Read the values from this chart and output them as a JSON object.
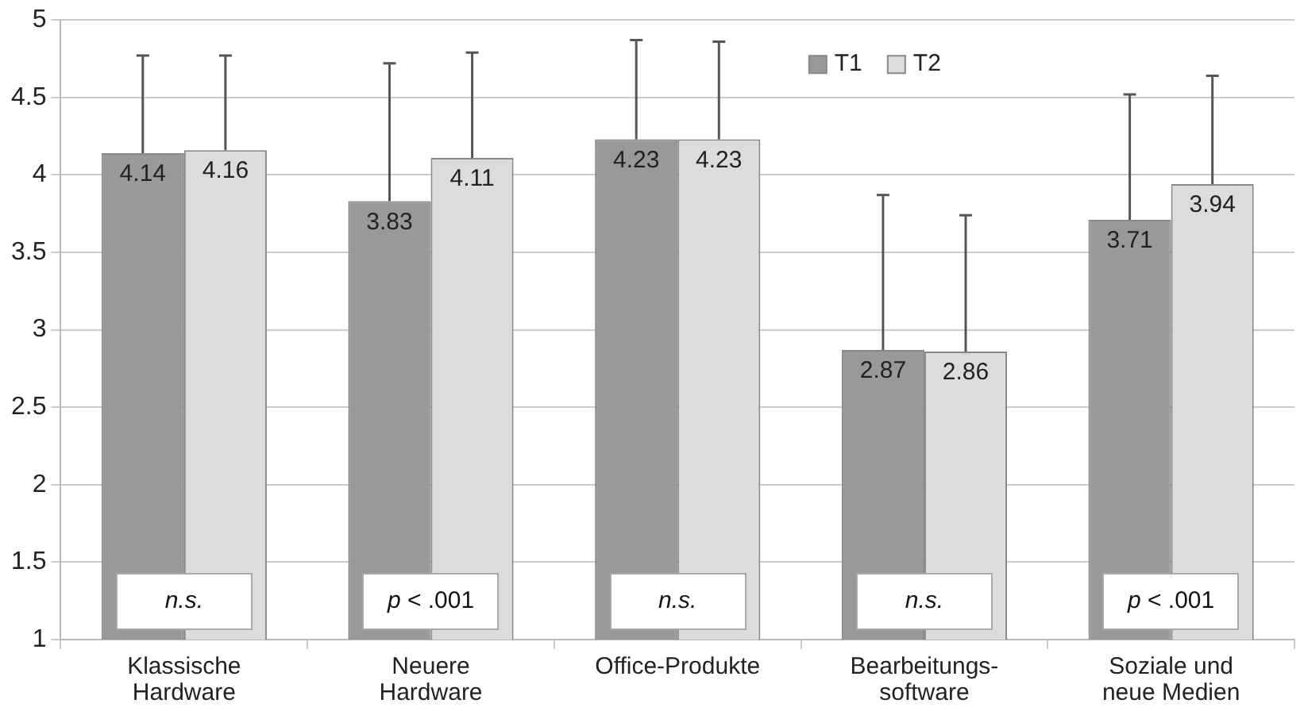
{
  "chart_data": {
    "type": "bar",
    "categories": [
      "Klassische\nHardware",
      "Neuere\nHardware",
      "Office-Produkte",
      "Bearbeitungs-\nsoftware",
      "Soziale und\nneue Medien"
    ],
    "series": [
      {
        "name": "T1",
        "color": "#999999",
        "values": [
          4.14,
          3.83,
          4.23,
          2.87,
          3.71
        ],
        "errors": [
          [
            4.14,
            4.77
          ],
          [
            3.83,
            4.72
          ],
          [
            4.23,
            4.87
          ],
          [
            2.87,
            3.87
          ],
          [
            3.71,
            4.52
          ]
        ]
      },
      {
        "name": "T2",
        "color": "#dcdcdc",
        "values": [
          4.16,
          4.11,
          4.23,
          2.86,
          3.94
        ],
        "errors": [
          [
            4.16,
            4.77
          ],
          [
            4.11,
            4.79
          ],
          [
            4.23,
            4.86
          ],
          [
            2.86,
            3.74
          ],
          [
            3.94,
            4.64
          ]
        ]
      }
    ],
    "ylim": [
      1,
      5
    ],
    "yticks": [
      1,
      1.5,
      2,
      2.5,
      3,
      3.5,
      4,
      4.5,
      5
    ],
    "grid": "y",
    "legend": "top right",
    "data_labels": true,
    "annotations": [
      {
        "text": "n.s.",
        "x": "Klassische\nHardware",
        "y": 1.25
      },
      {
        "text": "p < .001",
        "x": "Neuere\nHardware",
        "y": 1.25
      },
      {
        "text": "n.s.",
        "x": "Office-Produkte",
        "y": 1.25
      },
      {
        "text": "n.s.",
        "x": "Bearbeitungs-\nsoftware",
        "y": 1.25
      },
      {
        "text": "p < .001",
        "x": "Soziale und\nneue Medien",
        "y": 1.25
      }
    ]
  }
}
